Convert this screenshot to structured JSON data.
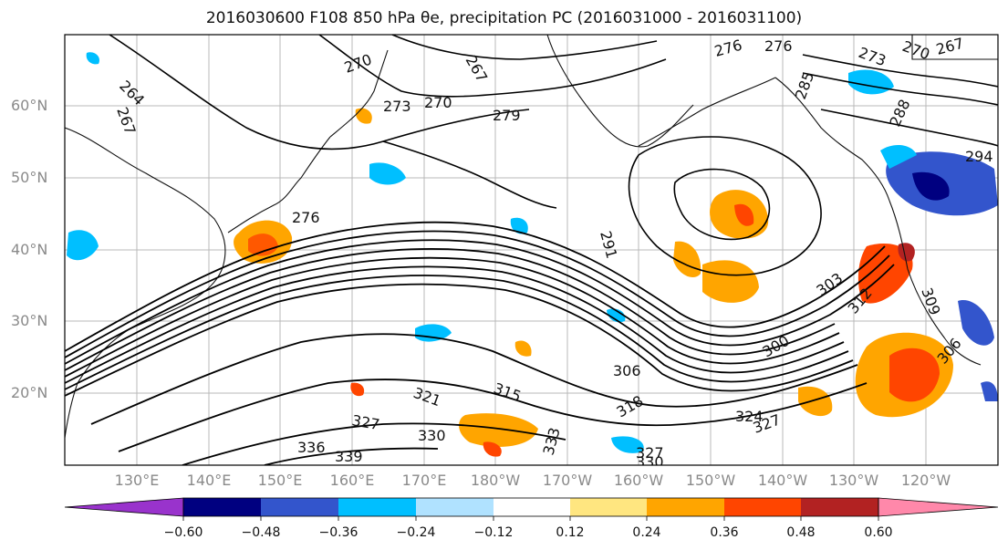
{
  "title": "2016030600 F108 850 hPa θe, precipitation PC (2016031000 - 2016031100)",
  "latitude_labels": [
    "60°N",
    "50°N",
    "40°N",
    "30°N",
    "20°N"
  ],
  "longitude_labels": [
    "130°E",
    "140°E",
    "150°E",
    "160°E",
    "170°E",
    "180°W",
    "170°W",
    "160°W",
    "150°W",
    "140°W",
    "130°W",
    "120°W"
  ],
  "contour_labels": [
    "264",
    "267",
    "270",
    "273",
    "270",
    "267",
    "276",
    "279",
    "276",
    "273",
    "270",
    "267",
    "288",
    "285",
    "294",
    "291",
    "276",
    "303",
    "312",
    "309",
    "306",
    "306",
    "315",
    "321",
    "327",
    "330",
    "333",
    "336",
    "339",
    "327",
    "330",
    "324",
    "327",
    "300",
    "318"
  ],
  "colorbar": {
    "ticks": [
      "−0.60",
      "−0.48",
      "−0.36",
      "−0.24",
      "−0.12",
      "0.12",
      "0.24",
      "0.36",
      "0.48",
      "0.60"
    ],
    "colors": [
      "#9933cc",
      "#000080",
      "#3355cc",
      "#00bfff",
      "#b0e2ff",
      "#ffffff",
      "#ffe680",
      "#ffa500",
      "#ff4500",
      "#b22222",
      "#ff88aa"
    ]
  }
}
